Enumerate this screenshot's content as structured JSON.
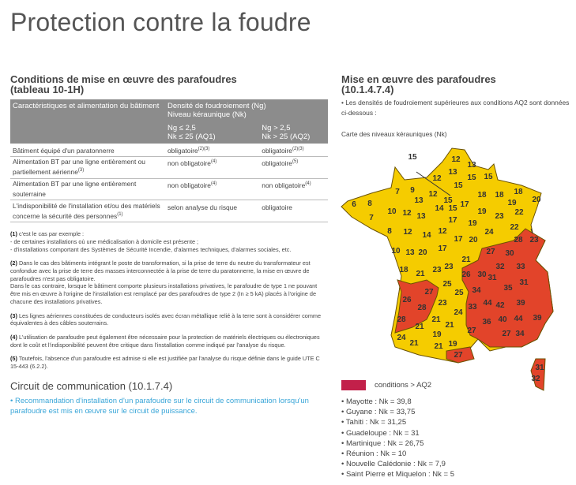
{
  "title": "Protection contre la foudre",
  "left": {
    "heading_line1": "Conditions de mise en œuvre des parafoudres",
    "heading_line2": "(tableau 10-1H)",
    "table": {
      "col1": "Caractéristiques et alimentation du bâtiment",
      "col2_line1": "Densité de foudroiement (Ng)",
      "col2_line2": "Niveau kéraunique (Nk)",
      "aq1_line1": "Ng ≤ 2,5",
      "aq1_line2": "Nk ≤ 25 (AQ1)",
      "aq2_line1": "Ng > 2,5",
      "aq2_line2": "Nk > 25 (AQ2)",
      "rows": [
        {
          "label": "Bâtiment équipé d'un paratonnerre",
          "label_sup": "",
          "aq1": "obligatoire",
          "aq1_sup": "(2)(3)",
          "aq2": "obligatoire",
          "aq2_sup": "(2)(3)"
        },
        {
          "label": "Alimentation BT par une ligne entièrement ou partiellement aérienne",
          "label_sup": "(3)",
          "aq1": "non obligatoire",
          "aq1_sup": "(4)",
          "aq2": "obligatoire",
          "aq2_sup": "(5)"
        },
        {
          "label": "Alimentation BT par une ligne entièrement souterraine",
          "label_sup": "",
          "aq1": "non obligatoire",
          "aq1_sup": "(4)",
          "aq2": "non obligatoire",
          "aq2_sup": "(4)"
        },
        {
          "label": "L'indisponibilité de l'installation et/ou des matériels concerne la sécurité des personnes",
          "label_sup": "(1)",
          "aq1": "selon analyse du risque",
          "aq1_sup": "",
          "aq2": "obligatoire",
          "aq2_sup": ""
        }
      ]
    },
    "notes": [
      {
        "num": "(1)",
        "text": "c'est le cas par exemple :",
        "lines": [
          "- de certaines installations où une médicalisation à domicile est présente ;",
          "- d'installations comportant des Systèmes de Sécurité Incendie, d'alarmes techniques, d'alarmes sociales, etc."
        ]
      },
      {
        "num": "(2)",
        "text": "Dans le cas des bâtiments intégrant le poste de transformation, si la prise de terre du neutre du transformateur est confondue avec la prise de terre des masses interconnectée à la prise de terre du paratonnerre, la mise en œuvre de parafoudres n'est pas obligatoire.",
        "lines": [
          "Dans le cas contraire, lorsque le bâtiment comporte plusieurs installations privatives, le parafoudre de type 1 ne pouvant être mis en œuvre à l'origine de l'installation est remplacé par des parafoudres de type 2 (In ≥ 5 kA) placés à l'origine de chacune des installations privatives."
        ]
      },
      {
        "num": "(3)",
        "text": "Les lignes aériennes constituées de conducteurs isolés avec écran métallique relié à la terre sont à considérer comme équivalentes à des câbles souterrains.",
        "lines": []
      },
      {
        "num": "(4)",
        "text": "L'utilisation de parafoudre peut également être nécessaire pour la protection de matériels électriques ou électroniques dont le coût et l'indisponibilité peuvent être critique dans l'installation comme indiqué par l'analyse du risque.",
        "lines": []
      },
      {
        "num": "(5)",
        "text": "Toutefois, l'absence d'un parafoudre est admise si elle est justifiée par l'analyse du risque définie dans le guide UTE C 15-443 (6.2.2).",
        "lines": []
      }
    ],
    "circuit_heading": "Circuit de communication (10.1.7.4)",
    "circuit_text": "• Recommandation d'installation d'un parafoudre sur le circuit de communication lorsqu'un parafoudre est mis en œuvre sur le circuit de puissance."
  },
  "right": {
    "heading_line1": "Mise en œuvre des parafoudres",
    "heading_line2": "(10.1.4.7.4)",
    "intro": "• Les densités de foudroiement supérieures aux conditions AQ2 sont données ci-dessous :",
    "map_caption": "Carte des niveaux kérauniques (Nk)",
    "map": {
      "colors": {
        "below": "#f5cc00",
        "above": "#e2442a",
        "border": "#6b5200"
      },
      "paris_callout": "15",
      "east_callout": "23",
      "labels": [
        "12",
        "13",
        "13",
        "15",
        "15",
        "12",
        "15",
        "9",
        "7",
        "12",
        "18",
        "18",
        "18",
        "19",
        "20",
        "6",
        "8",
        "13",
        "15",
        "17",
        "14",
        "15",
        "10",
        "12",
        "19",
        "23",
        "22",
        "7",
        "13",
        "17",
        "19",
        "22",
        "8",
        "12",
        "14",
        "12",
        "17",
        "20",
        "24",
        "28",
        "27",
        "30",
        "10",
        "13",
        "20",
        "17",
        "21",
        "32",
        "33",
        "18",
        "21",
        "23",
        "23",
        "26",
        "30",
        "31",
        "31",
        "35",
        "25",
        "25",
        "27",
        "34",
        "26",
        "44",
        "42",
        "39",
        "23",
        "28",
        "33",
        "24",
        "28",
        "21",
        "40",
        "44",
        "39",
        "36",
        "21",
        "21",
        "27",
        "27",
        "34",
        "24",
        "19",
        "21",
        "21",
        "19",
        "27",
        "31",
        "32"
      ]
    },
    "legend_label": "conditions > AQ2",
    "legend_color": "#c2204a",
    "territories": [
      "Mayotte : Nk = 39,8",
      "Guyane : Nk = 33,75",
      "Tahiti : Nk = 31,25",
      "Guadeloupe : Nk = 31",
      "Martinique : Nk = 26,75",
      "Réunion : Nk = 10",
      "Nouvelle Calédonie : Nk = 7,9",
      "Saint Pierre et Miquelon : Nk = 5"
    ]
  }
}
